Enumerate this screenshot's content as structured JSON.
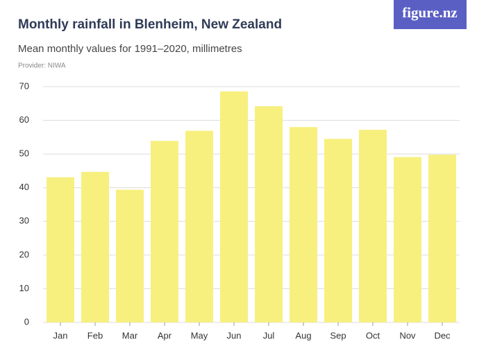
{
  "chart_data": {
    "type": "bar",
    "title": "Monthly rainfall in Blenheim, New Zealand",
    "subtitle": "Mean monthly values for 1991–2020, millimetres",
    "provider": "Provider: NIWA",
    "logo": "figure.nz",
    "categories": [
      "Jan",
      "Feb",
      "Mar",
      "Apr",
      "May",
      "Jun",
      "Jul",
      "Aug",
      "Sep",
      "Oct",
      "Nov",
      "Dec"
    ],
    "values": [
      43.1,
      44.7,
      39.4,
      53.9,
      56.9,
      68.6,
      64.2,
      58.0,
      54.5,
      57.2,
      49.1,
      49.8
    ],
    "color": "#f7f07f",
    "ylim": [
      0,
      70
    ],
    "yticks": [
      0,
      10,
      20,
      30,
      40,
      50,
      60,
      70
    ],
    "grid": true
  }
}
